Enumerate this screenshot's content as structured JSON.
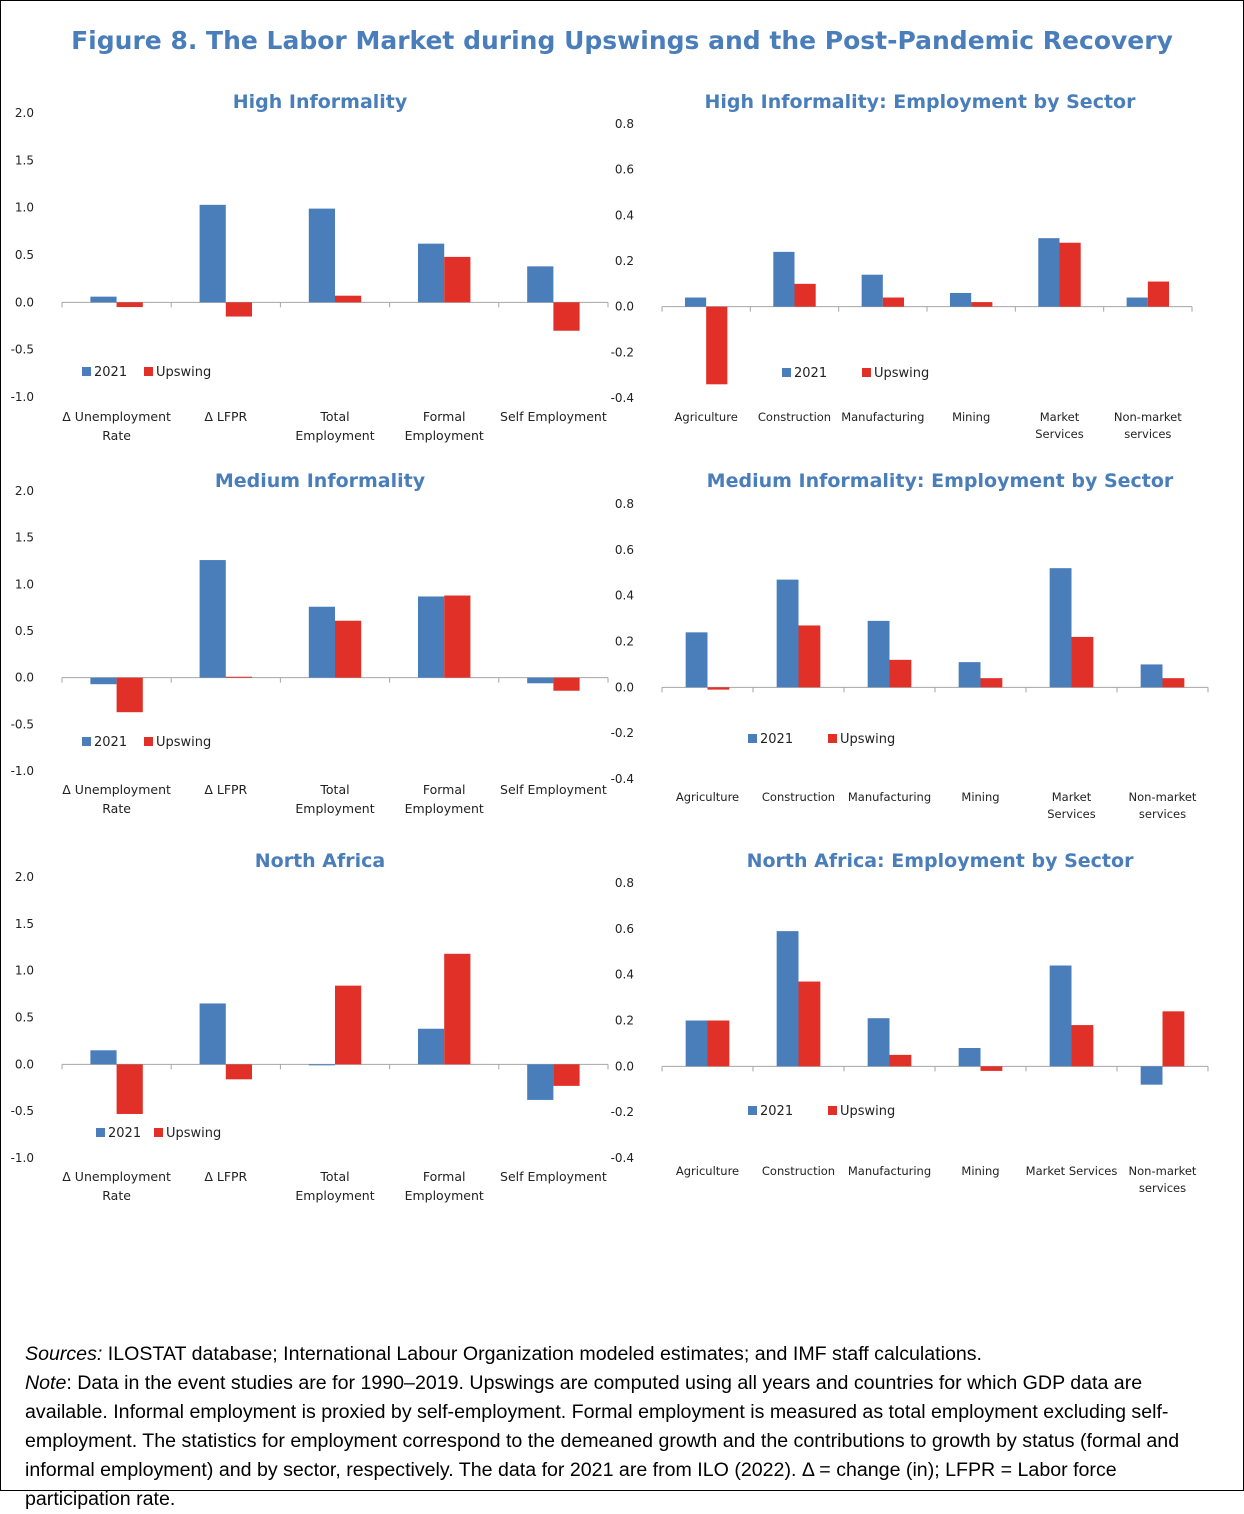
{
  "figure_title": "Figure 8. The Labor Market during Upswings and the Post-Pandemic Recovery",
  "colors": {
    "series_2021": "#4a7ebb",
    "series_upswing": "#e03028",
    "title": "#4a7ebb",
    "axis": "#a6a6a6"
  },
  "notes": {
    "sources_label": "Sources:",
    "sources_text": " ILOSTAT database; International Labour Organization modeled estimates; and IMF staff calculations.",
    "note_label": "Note",
    "note_text": ": Data in the event studies are for 1990–2019. Upswings are computed using all years and countries for which GDP data are available. Informal employment is proxied by self-employment. Formal employment is measured as total employment excluding self-employment. The statistics for employment correspond to the demeaned growth and the contributions to growth by status (formal and informal employment) and by sector, respectively. The data for 2021 are from ILO (2022). Δ = change (in); LFPR = Labor force participation rate."
  },
  "chart_data": [
    {
      "type": "bar",
      "title": "High Informality",
      "categories": [
        [
          "Δ Unemployment",
          "Rate"
        ],
        [
          "Δ LFPR"
        ],
        [
          "Total",
          "Employment"
        ],
        [
          "Formal",
          "Employment"
        ],
        [
          "Self Employment"
        ]
      ],
      "series": [
        {
          "name": "2021",
          "values": [
            0.06,
            1.03,
            0.99,
            0.62,
            0.38
          ]
        },
        {
          "name": "Upswing",
          "values": [
            -0.05,
            -0.15,
            0.07,
            0.48,
            -0.3
          ]
        }
      ],
      "ylim": [
        -1.0,
        2.0
      ],
      "yticks": [
        "2.0",
        "1.5",
        "1.0",
        "0.5",
        "0.0",
        "-0.5",
        "-1.0"
      ],
      "grid": false,
      "legend": "bottom-left"
    },
    {
      "type": "bar",
      "title": "High Informality: Employment by Sector",
      "categories": [
        [
          "Agriculture"
        ],
        [
          "Construction"
        ],
        [
          "Manufacturing"
        ],
        [
          "Mining"
        ],
        [
          "Market",
          "Services"
        ],
        [
          "Non-market",
          "services"
        ]
      ],
      "series": [
        {
          "name": "2021",
          "values": [
            0.04,
            0.24,
            0.14,
            0.06,
            0.3,
            0.04
          ]
        },
        {
          "name": "Upswing",
          "values": [
            -0.34,
            0.1,
            0.04,
            0.02,
            0.28,
            0.11
          ]
        }
      ],
      "ylim": [
        -0.4,
        0.8
      ],
      "yticks": [
        "0.8",
        "0.6",
        "0.4",
        "0.2",
        "0.0",
        "-0.2",
        "-0.4"
      ],
      "grid": false,
      "legend": "bottom-center"
    },
    {
      "type": "bar",
      "title": "Medium Informality",
      "categories": [
        [
          "Δ Unemployment",
          "Rate"
        ],
        [
          "Δ LFPR"
        ],
        [
          "Total",
          "Employment"
        ],
        [
          "Formal",
          "Employment"
        ],
        [
          "Self Employment"
        ]
      ],
      "series": [
        {
          "name": "2021",
          "values": [
            -0.07,
            1.26,
            0.76,
            0.87,
            -0.06
          ]
        },
        {
          "name": "Upswing",
          "values": [
            -0.37,
            0.01,
            0.61,
            0.88,
            -0.14
          ]
        }
      ],
      "ylim": [
        -1.0,
        2.0
      ],
      "yticks": [
        "2.0",
        "1.5",
        "1.0",
        "0.5",
        "0.0",
        "-0.5",
        "-1.0"
      ],
      "grid": false,
      "legend": "bottom-left"
    },
    {
      "type": "bar",
      "title": "Medium Informality: Employment by Sector",
      "categories": [
        [
          "Agriculture"
        ],
        [
          "Construction"
        ],
        [
          "Manufacturing"
        ],
        [
          "Mining"
        ],
        [
          "Market",
          "Services"
        ],
        [
          "Non-market",
          "services"
        ]
      ],
      "series": [
        {
          "name": "2021",
          "values": [
            0.24,
            0.47,
            0.29,
            0.11,
            0.52,
            0.1
          ]
        },
        {
          "name": "Upswing",
          "values": [
            -0.01,
            0.27,
            0.12,
            0.04,
            0.22,
            0.04
          ]
        }
      ],
      "ylim": [
        -0.4,
        0.8
      ],
      "yticks": [
        "0.8",
        "0.6",
        "0.4",
        "0.2",
        "0.0",
        "-0.2",
        "-0.4"
      ],
      "grid": false,
      "legend": "bottom-center"
    },
    {
      "type": "bar",
      "title": "North Africa",
      "categories": [
        [
          "Δ Unemployment",
          "Rate"
        ],
        [
          "Δ LFPR"
        ],
        [
          "Total",
          "Employment"
        ],
        [
          "Formal",
          "Employment"
        ],
        [
          "Self Employment"
        ]
      ],
      "series": [
        {
          "name": "2021",
          "values": [
            0.15,
            0.65,
            -0.01,
            0.38,
            -0.38
          ]
        },
        {
          "name": "Upswing",
          "values": [
            -0.53,
            -0.16,
            0.84,
            1.18,
            -0.23
          ]
        }
      ],
      "ylim": [
        -1.0,
        2.0
      ],
      "yticks": [
        "2.0",
        "1.5",
        "1.0",
        "0.5",
        "0.0",
        "-0.5",
        "-1.0"
      ],
      "grid": false,
      "legend": "bottom-left"
    },
    {
      "type": "bar",
      "title": "North Africa: Employment by Sector",
      "categories": [
        [
          "Agriculture"
        ],
        [
          "Construction"
        ],
        [
          "Manufacturing"
        ],
        [
          "Mining"
        ],
        [
          "Market Services"
        ],
        [
          "Non-market",
          "services"
        ]
      ],
      "series": [
        {
          "name": "2021",
          "values": [
            0.2,
            0.59,
            0.21,
            0.08,
            0.44,
            -0.08
          ]
        },
        {
          "name": "Upswing",
          "values": [
            0.2,
            0.37,
            0.05,
            -0.02,
            0.18,
            0.24
          ]
        }
      ],
      "ylim": [
        -0.4,
        0.8
      ],
      "yticks": [
        "0.8",
        "0.6",
        "0.4",
        "0.2",
        "0.0",
        "-0.2",
        "-0.4"
      ],
      "grid": false,
      "legend": "bottom-center"
    }
  ]
}
